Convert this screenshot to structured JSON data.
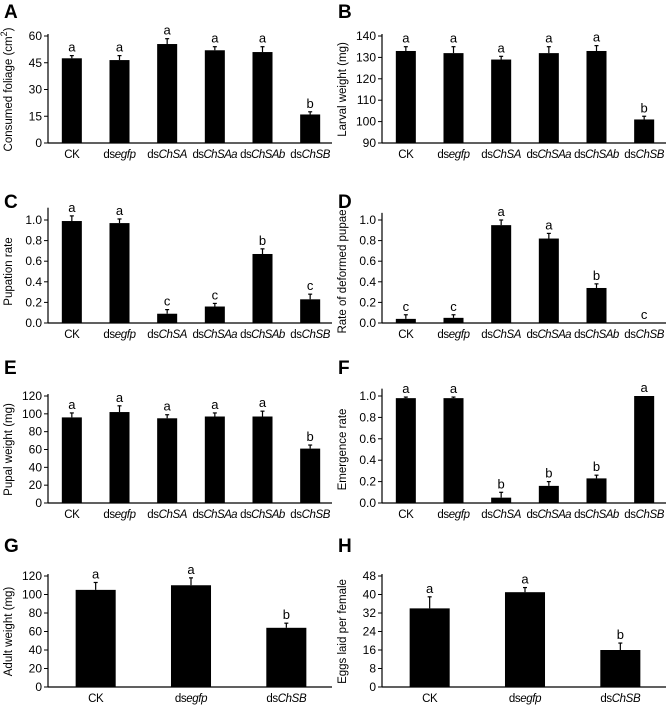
{
  "figure": {
    "panels": [
      "A",
      "B",
      "C",
      "D",
      "E",
      "F",
      "G",
      "H"
    ]
  },
  "chart_data": [
    {
      "panel": "A",
      "type": "bar",
      "ylabel": "Consumed foliage (cm²)",
      "xlabel": "",
      "categories": [
        {
          "prefix": "CK",
          "italic": ""
        },
        {
          "prefix": "ds",
          "italic": "egfp"
        },
        {
          "prefix": "ds",
          "italic": "ChSA"
        },
        {
          "prefix": "ds",
          "italic": "ChSAa"
        },
        {
          "prefix": "ds",
          "italic": "ChSAb"
        },
        {
          "prefix": "ds",
          "italic": "ChSB"
        }
      ],
      "values": [
        47.5,
        46.5,
        55.5,
        52,
        51,
        16
      ],
      "errors": [
        1.5,
        2.5,
        3,
        2,
        3,
        1.5
      ],
      "letters": [
        "a",
        "a",
        "a",
        "a",
        "a",
        "b"
      ],
      "ylim": [
        0,
        60
      ],
      "yticks": [
        0,
        15,
        30,
        45,
        60
      ],
      "grid": false
    },
    {
      "panel": "B",
      "type": "bar",
      "ylabel": "Larval  weight (mg)",
      "xlabel": "",
      "categories": [
        {
          "prefix": "CK",
          "italic": ""
        },
        {
          "prefix": "ds",
          "italic": "egfp"
        },
        {
          "prefix": "ds",
          "italic": "ChSA"
        },
        {
          "prefix": "ds",
          "italic": "ChSAa"
        },
        {
          "prefix": "ds",
          "italic": "ChSAb"
        },
        {
          "prefix": "ds",
          "italic": "ChSB"
        }
      ],
      "values": [
        133,
        132,
        129,
        132,
        133,
        101
      ],
      "errors": [
        2,
        3,
        1.5,
        3,
        2.5,
        1.5
      ],
      "letters": [
        "a",
        "a",
        "a",
        "a",
        "a",
        "b"
      ],
      "ylim": [
        90,
        140
      ],
      "yticks": [
        90,
        100,
        110,
        120,
        130,
        140
      ],
      "grid": false
    },
    {
      "panel": "C",
      "type": "bar",
      "ylabel": "Pupation rate",
      "xlabel": "",
      "categories": [
        {
          "prefix": "CK",
          "italic": ""
        },
        {
          "prefix": "ds",
          "italic": "egfp"
        },
        {
          "prefix": "ds",
          "italic": "ChSA"
        },
        {
          "prefix": "ds",
          "italic": "ChSAa"
        },
        {
          "prefix": "ds",
          "italic": "ChSAb"
        },
        {
          "prefix": "ds",
          "italic": "ChSB"
        }
      ],
      "values": [
        0.99,
        0.97,
        0.09,
        0.16,
        0.67,
        0.23
      ],
      "errors": [
        0.05,
        0.04,
        0.04,
        0.03,
        0.05,
        0.05
      ],
      "letters": [
        "a",
        "a",
        "c",
        "c",
        "b",
        "c"
      ],
      "ylim": [
        0,
        1.1
      ],
      "yticks": [
        0.0,
        0.2,
        0.4,
        0.6,
        0.8,
        1.0
      ],
      "tick_format": 1,
      "grid": false
    },
    {
      "panel": "D",
      "type": "bar",
      "ylabel": "Rate of deformed pupae",
      "xlabel": "",
      "categories": [
        {
          "prefix": "CK",
          "italic": ""
        },
        {
          "prefix": "ds",
          "italic": "egfp"
        },
        {
          "prefix": "ds",
          "italic": "ChSA"
        },
        {
          "prefix": "ds",
          "italic": "ChSAa"
        },
        {
          "prefix": "ds",
          "italic": "ChSAb"
        },
        {
          "prefix": "ds",
          "italic": "ChSB"
        }
      ],
      "values": [
        0.04,
        0.05,
        0.95,
        0.82,
        0.34,
        0.0
      ],
      "errors": [
        0.04,
        0.03,
        0.05,
        0.05,
        0.04,
        0.0
      ],
      "letters": [
        "c",
        "c",
        "a",
        "a",
        "b",
        "c"
      ],
      "ylim": [
        0,
        1.05
      ],
      "yticks": [
        0.0,
        0.2,
        0.4,
        0.6,
        0.8,
        1.0
      ],
      "tick_format": 1,
      "grid": false
    },
    {
      "panel": "E",
      "type": "bar",
      "ylabel": "Pupal  weight (mg)",
      "xlabel": "",
      "categories": [
        {
          "prefix": "CK",
          "italic": ""
        },
        {
          "prefix": "ds",
          "italic": "egfp"
        },
        {
          "prefix": "ds",
          "italic": "ChSA"
        },
        {
          "prefix": "ds",
          "italic": "ChSAa"
        },
        {
          "prefix": "ds",
          "italic": "ChSAb"
        },
        {
          "prefix": "ds",
          "italic": "ChSB"
        }
      ],
      "values": [
        96,
        102,
        95,
        97,
        97,
        61
      ],
      "errors": [
        5,
        7,
        4,
        4,
        6,
        4
      ],
      "letters": [
        "a",
        "a",
        "a",
        "a",
        "a",
        "b"
      ],
      "ylim": [
        0,
        120
      ],
      "yticks": [
        0,
        20,
        40,
        60,
        80,
        100,
        120
      ],
      "grid": false
    },
    {
      "panel": "F",
      "type": "bar",
      "ylabel": "Emergence rate",
      "xlabel": "",
      "categories": [
        {
          "prefix": "CK",
          "italic": ""
        },
        {
          "prefix": "ds",
          "italic": "egfp"
        },
        {
          "prefix": "ds",
          "italic": "ChSA"
        },
        {
          "prefix": "ds",
          "italic": "ChSAa"
        },
        {
          "prefix": "ds",
          "italic": "ChSAb"
        },
        {
          "prefix": "ds",
          "italic": "ChSB"
        }
      ],
      "values": [
        0.98,
        0.98,
        0.05,
        0.16,
        0.23,
        1.0
      ],
      "errors": [
        0.01,
        0.01,
        0.05,
        0.04,
        0.03,
        0.0
      ],
      "letters": [
        "a",
        "a",
        "b",
        "b",
        "b",
        "a"
      ],
      "ylim": [
        0,
        1.05
      ],
      "yticks": [
        0.0,
        0.2,
        0.4,
        0.6,
        0.8,
        1.0
      ],
      "tick_format": 1,
      "grid": false
    },
    {
      "panel": "G",
      "type": "bar",
      "ylabel": "Adult  weight (mg)",
      "xlabel": "",
      "categories": [
        {
          "prefix": "CK",
          "italic": ""
        },
        {
          "prefix": "ds",
          "italic": "egfp"
        },
        {
          "prefix": "ds",
          "italic": "ChSB"
        }
      ],
      "values": [
        105,
        110,
        64
      ],
      "errors": [
        8,
        8,
        5
      ],
      "letters": [
        "a",
        "a",
        "b"
      ],
      "ylim": [
        0,
        120
      ],
      "yticks": [
        0,
        20,
        40,
        60,
        80,
        100,
        120
      ],
      "grid": false
    },
    {
      "panel": "H",
      "type": "bar",
      "ylabel": "Eggs laid per female",
      "xlabel": "",
      "categories": [
        {
          "prefix": "CK",
          "italic": ""
        },
        {
          "prefix": "ds",
          "italic": "egfp"
        },
        {
          "prefix": "ds",
          "italic": "ChSB"
        }
      ],
      "values": [
        34,
        41,
        16
      ],
      "errors": [
        5,
        2,
        3
      ],
      "letters": [
        "a",
        "a",
        "b"
      ],
      "ylim": [
        0,
        48
      ],
      "yticks": [
        0,
        8,
        16,
        24,
        32,
        40,
        48
      ],
      "grid": false
    }
  ]
}
